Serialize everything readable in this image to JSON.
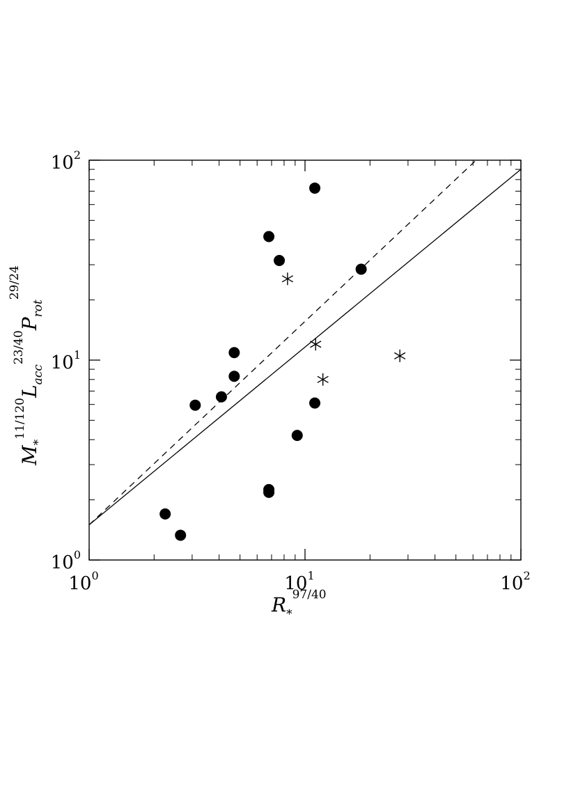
{
  "chart_data": {
    "type": "scatter",
    "title": "",
    "xscale": "log",
    "yscale": "log",
    "xlim": [
      1,
      100
    ],
    "ylim": [
      1,
      100
    ],
    "grid": false,
    "xlabel": {
      "base": "R",
      "sub": "*",
      "sup": "97/40"
    },
    "ylabel": {
      "p1_base": "M",
      "p1_sub": "*",
      "p1_sup": "11/120",
      "p2_base": "L",
      "p2_sub": "acc",
      "p2_sup": "23/40",
      "p3_base": "P",
      "p3_sub": "rot",
      "p3_sup": "29/24"
    },
    "xticks": [
      {
        "value": 1,
        "base": "10",
        "exp": "0"
      },
      {
        "value": 10,
        "base": "10",
        "exp": "1"
      },
      {
        "value": 100,
        "base": "10",
        "exp": "2"
      }
    ],
    "yticks": [
      {
        "value": 1,
        "base": "10",
        "exp": "0"
      },
      {
        "value": 10,
        "base": "10",
        "exp": "1"
      },
      {
        "value": 100,
        "base": "10",
        "exp": "2"
      }
    ],
    "series": [
      {
        "marker": "filled-circle",
        "x": [
          2.25,
          2.65,
          3.1,
          4.1,
          4.7,
          4.7,
          6.8,
          6.8,
          6.8,
          7.6,
          9.2,
          11.1,
          11.1,
          18.2
        ],
        "y": [
          1.7,
          1.33,
          5.95,
          6.55,
          8.3,
          10.9,
          2.18,
          2.25,
          41.5,
          31.5,
          4.2,
          6.1,
          72.5,
          28.5
        ]
      },
      {
        "marker": "asterisk",
        "x": [
          8.3,
          11.2,
          12.1,
          27.5
        ],
        "y": [
          25.5,
          12.0,
          8.0,
          10.5
        ]
      }
    ],
    "lines": [
      {
        "style": "solid",
        "x": [
          1,
          100
        ],
        "y": [
          1.5,
          90
        ]
      },
      {
        "style": "dashed",
        "x": [
          1,
          62
        ],
        "y": [
          1.5,
          100
        ]
      }
    ]
  }
}
